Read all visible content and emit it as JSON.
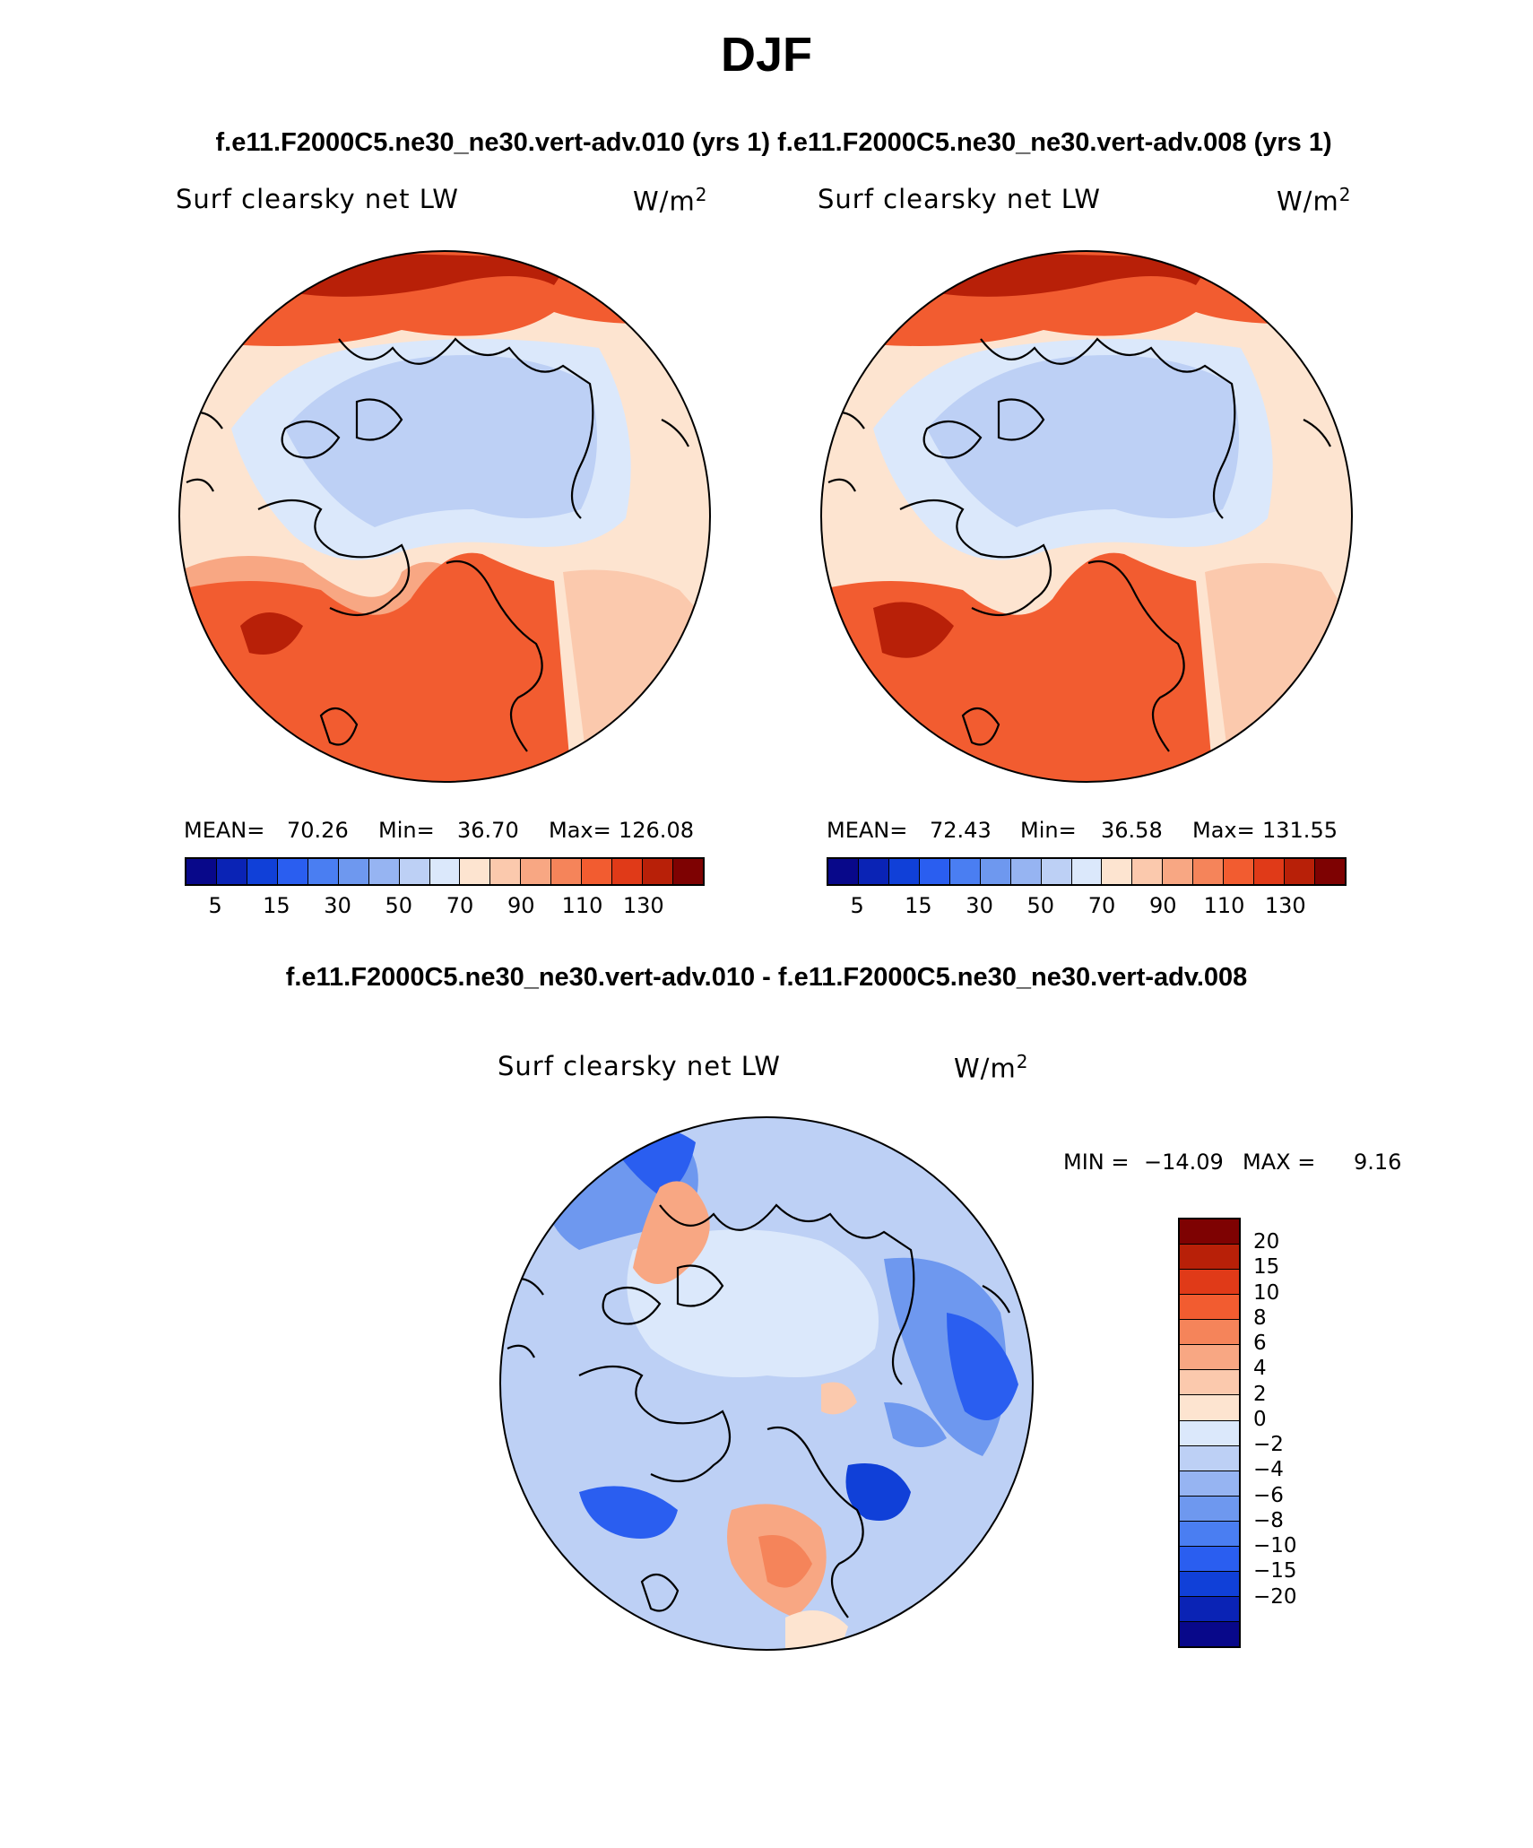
{
  "title": "DJF",
  "subtitle_left": "f.e11.F2000C5.ne30_ne30.vert-adv.010 (yrs 1)",
  "subtitle_right": "f.e11.F2000C5.ne30_ne30.vert-adv.008 (yrs 1)",
  "diff_title": "f.e11.F2000C5.ne30_ne30.vert-adv.010 - f.e11.F2000C5.ne30_ne30.vert-adv.008",
  "panels": [
    {
      "variable": "Surf clearsky net LW",
      "units": "W/m",
      "units_sup": "2",
      "mean_label": "MEAN=",
      "mean": "70.26",
      "min_label": "Min=",
      "min": "36.70",
      "max_label": "Max=",
      "max": "126.08"
    },
    {
      "variable": "Surf clearsky net LW",
      "units": "W/m",
      "units_sup": "2",
      "mean_label": "MEAN=",
      "mean": "72.43",
      "min_label": "Min=",
      "min": "36.58",
      "max_label": "Max=",
      "max": "131.55"
    }
  ],
  "diff_panel": {
    "variable": "Surf clearsky net LW",
    "units": "W/m",
    "units_sup": "2",
    "min_label": "MIN =",
    "min": "−14.09",
    "max_label": "MAX =",
    "max": "9.16"
  },
  "colorbar": {
    "colors": [
      "#08088a",
      "#0a23b5",
      "#1040d8",
      "#2a5ef0",
      "#4a7ef2",
      "#6e98ef",
      "#96b4f2",
      "#bdd0f5",
      "#dbe8fb",
      "#fde4d0",
      "#fbc9ad",
      "#f8a783",
      "#f5845a",
      "#f25c30",
      "#e03a18",
      "#b82008",
      "#7e0202"
    ],
    "tick_labels": [
      "5",
      "15",
      "30",
      "50",
      "70",
      "90",
      "110",
      "130"
    ]
  },
  "diff_colorbar": {
    "colors": [
      "#7e0202",
      "#b82008",
      "#e03a18",
      "#f25c30",
      "#f5845a",
      "#f8a783",
      "#fbc9ad",
      "#fde4d0",
      "#dbe8fb",
      "#bdd0f5",
      "#96b4f2",
      "#6e98ef",
      "#4a7ef2",
      "#2a5ef0",
      "#1040d8",
      "#0a23b5",
      "#08088a"
    ],
    "tick_labels": [
      "20",
      "15",
      "10",
      "8",
      "6",
      "4",
      "2",
      "0",
      "−2",
      "−4",
      "−6",
      "−8",
      "−10",
      "−15",
      "−20"
    ]
  },
  "map_colors": {
    "red_dark": "#b82008",
    "red": "#f25c30",
    "orange": "#f5845a",
    "salmon": "#f8a783",
    "peach": "#fbc9ad",
    "cream": "#fde4d0",
    "ice": "#dbe8fb",
    "lightblue": "#bdd0f5",
    "blue": "#96b4f2",
    "midblue": "#6e98ef",
    "strongblue": "#2a5ef0",
    "deepblue": "#1040d8"
  }
}
